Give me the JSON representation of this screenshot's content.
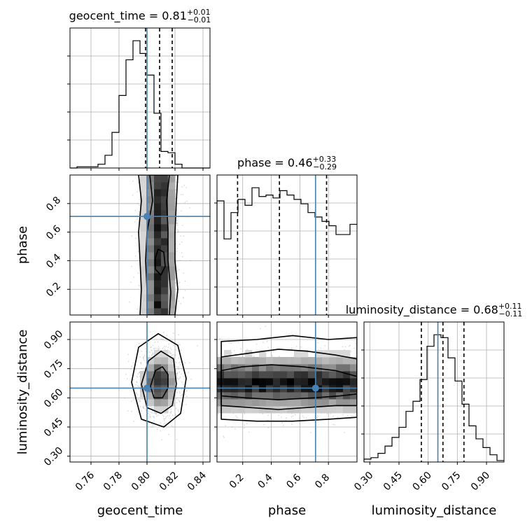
{
  "chart_data": {
    "type": "corner",
    "parameters": [
      {
        "name": "geocent_time",
        "title_name": "geocent_time",
        "median": "0.81",
        "plus": "+0.01",
        "minus": "−0.01",
        "truth": 0.8,
        "quantiles": [
          0.799,
          0.809,
          0.818
        ],
        "range": [
          0.745,
          0.845
        ],
        "ticks": [
          0.76,
          0.78,
          0.8,
          0.82,
          0.84
        ],
        "tick_labels": [
          "0.76",
          "0.78",
          "0.80",
          "0.82",
          "0.84"
        ],
        "hist_edges_start": 0.745,
        "hist_bin_width": 0.005,
        "hist_counts": [
          0,
          1,
          1,
          1,
          3,
          10,
          28,
          57,
          85,
          100,
          90,
          73,
          43,
          13,
          12,
          3,
          0,
          0,
          0,
          0
        ]
      },
      {
        "name": "phase",
        "title_name": "phase",
        "median": "0.46",
        "plus": "+0.33",
        "minus": "−0.29",
        "truth": 0.71,
        "quantiles": [
          0.164,
          0.457,
          0.787
        ],
        "range": [
          0.02,
          1.0
        ],
        "ticks": [
          0.2,
          0.4,
          0.6,
          0.8
        ],
        "tick_labels": [
          "0.2",
          "0.4",
          "0.6",
          "0.8"
        ],
        "hist_edges_start": 0.02,
        "hist_bin_width": 0.049,
        "hist_counts": [
          78,
          52,
          70,
          79,
          75,
          87,
          81,
          82,
          80,
          85,
          82,
          79,
          76,
          70,
          67,
          64,
          61,
          55,
          55,
          62
        ]
      },
      {
        "name": "luminosity_distance",
        "title_name": "luminosity_distance",
        "median": "0.68",
        "plus": "+0.11",
        "minus": "−0.11",
        "truth": 0.65,
        "quantiles": [
          0.565,
          0.676,
          0.784
        ],
        "range": [
          0.27,
          0.99
        ],
        "ticks": [
          0.3,
          0.45,
          0.6,
          0.75,
          0.9
        ],
        "tick_labels": [
          "0.30",
          "0.45",
          "0.60",
          "0.75",
          "0.90"
        ],
        "hist_edges_start": 0.27,
        "hist_bin_width": 0.036,
        "hist_counts": [
          2,
          3,
          6,
          11,
          17,
          24,
          35,
          42,
          57,
          80,
          88,
          86,
          72,
          56,
          40,
          25,
          16,
          10,
          5,
          1
        ]
      }
    ],
    "pairs": [
      {
        "x_param": 0,
        "y_param": 1,
        "truth_x": 0.8,
        "truth_y": 0.71,
        "density_mu_x": 0.809,
        "density_sd_x": 0.006,
        "density_mu_y": 0.5,
        "density_sd_y": 0.6,
        "contours": [
          [
            [
              0.802,
              1.0
            ],
            [
              0.804,
              0.82
            ],
            [
              0.8,
              0.6
            ],
            [
              0.799,
              0.4
            ],
            [
              0.8,
              0.2
            ],
            [
              0.8,
              0.02
            ],
            [
              0.816,
              0.02
            ],
            [
              0.817,
              0.18
            ],
            [
              0.815,
              0.4
            ],
            [
              0.815,
              0.62
            ],
            [
              0.814,
              0.82
            ],
            [
              0.816,
              1.0
            ]
          ],
          [
            [
              0.794,
              1.0
            ],
            [
              0.796,
              0.82
            ],
            [
              0.794,
              0.6
            ],
            [
              0.795,
              0.4
            ],
            [
              0.796,
              0.2
            ],
            [
              0.795,
              0.02
            ],
            [
              0.82,
              0.02
            ],
            [
              0.822,
              0.2
            ],
            [
              0.82,
              0.4
            ],
            [
              0.82,
              0.6
            ],
            [
              0.821,
              0.82
            ],
            [
              0.822,
              1.0
            ]
          ],
          [
            [
              0.808,
              0.48
            ],
            [
              0.812,
              0.46
            ],
            [
              0.813,
              0.36
            ],
            [
              0.81,
              0.3
            ],
            [
              0.806,
              0.34
            ],
            [
              0.806,
              0.42
            ]
          ]
        ]
      },
      {
        "x_param": 0,
        "y_param": 2,
        "truth_x": 0.8,
        "truth_y": 0.65,
        "density_mu_x": 0.809,
        "density_sd_x": 0.0065,
        "density_mu_y": 0.68,
        "density_sd_y": 0.075,
        "contours": [
          [
            [
              0.8025,
              0.66
            ],
            [
              0.806,
              0.74
            ],
            [
              0.811,
              0.76
            ],
            [
              0.815,
              0.72
            ],
            [
              0.815,
              0.65
            ],
            [
              0.811,
              0.6
            ],
            [
              0.805,
              0.6
            ]
          ],
          [
            [
              0.796,
              0.67
            ],
            [
              0.801,
              0.79
            ],
            [
              0.81,
              0.84
            ],
            [
              0.819,
              0.8
            ],
            [
              0.821,
              0.67
            ],
            [
              0.818,
              0.56
            ],
            [
              0.81,
              0.52
            ],
            [
              0.8,
              0.55
            ]
          ],
          [
            [
              0.789,
              0.68
            ],
            [
              0.794,
              0.86
            ],
            [
              0.808,
              0.93
            ],
            [
              0.822,
              0.87
            ],
            [
              0.828,
              0.7
            ],
            [
              0.824,
              0.52
            ],
            [
              0.812,
              0.45
            ],
            [
              0.796,
              0.49
            ]
          ]
        ]
      },
      {
        "x_param": 1,
        "y_param": 2,
        "truth_x": 0.71,
        "truth_y": 0.65,
        "density_mu_x": 0.45,
        "density_sd_x": 0.7,
        "density_mu_y": 0.675,
        "density_sd_y": 0.075,
        "contours": [
          [
            [
              0.05,
              0.56
            ],
            [
              0.25,
              0.55
            ],
            [
              0.45,
              0.54
            ],
            [
              0.65,
              0.55
            ],
            [
              0.85,
              0.56
            ],
            [
              1.0,
              0.56
            ],
            [
              1.0,
              0.8
            ],
            [
              0.85,
              0.82
            ],
            [
              0.65,
              0.84
            ],
            [
              0.45,
              0.85
            ],
            [
              0.25,
              0.83
            ],
            [
              0.05,
              0.81
            ]
          ],
          [
            [
              0.05,
              0.61
            ],
            [
              0.22,
              0.6
            ],
            [
              0.45,
              0.59
            ],
            [
              0.7,
              0.6
            ],
            [
              0.88,
              0.61
            ],
            [
              1.0,
              0.62
            ],
            [
              1.0,
              0.71
            ],
            [
              0.85,
              0.74
            ],
            [
              0.62,
              0.76
            ],
            [
              0.4,
              0.77
            ],
            [
              0.2,
              0.76
            ],
            [
              0.05,
              0.74
            ]
          ],
          [
            [
              0.05,
              0.49
            ],
            [
              0.3,
              0.48
            ],
            [
              0.55,
              0.48
            ],
            [
              0.8,
              0.49
            ],
            [
              1.0,
              0.5
            ],
            [
              1.0,
              0.91
            ],
            [
              0.8,
              0.9
            ],
            [
              0.55,
              0.92
            ],
            [
              0.3,
              0.9
            ],
            [
              0.05,
              0.89
            ]
          ]
        ]
      }
    ]
  }
}
